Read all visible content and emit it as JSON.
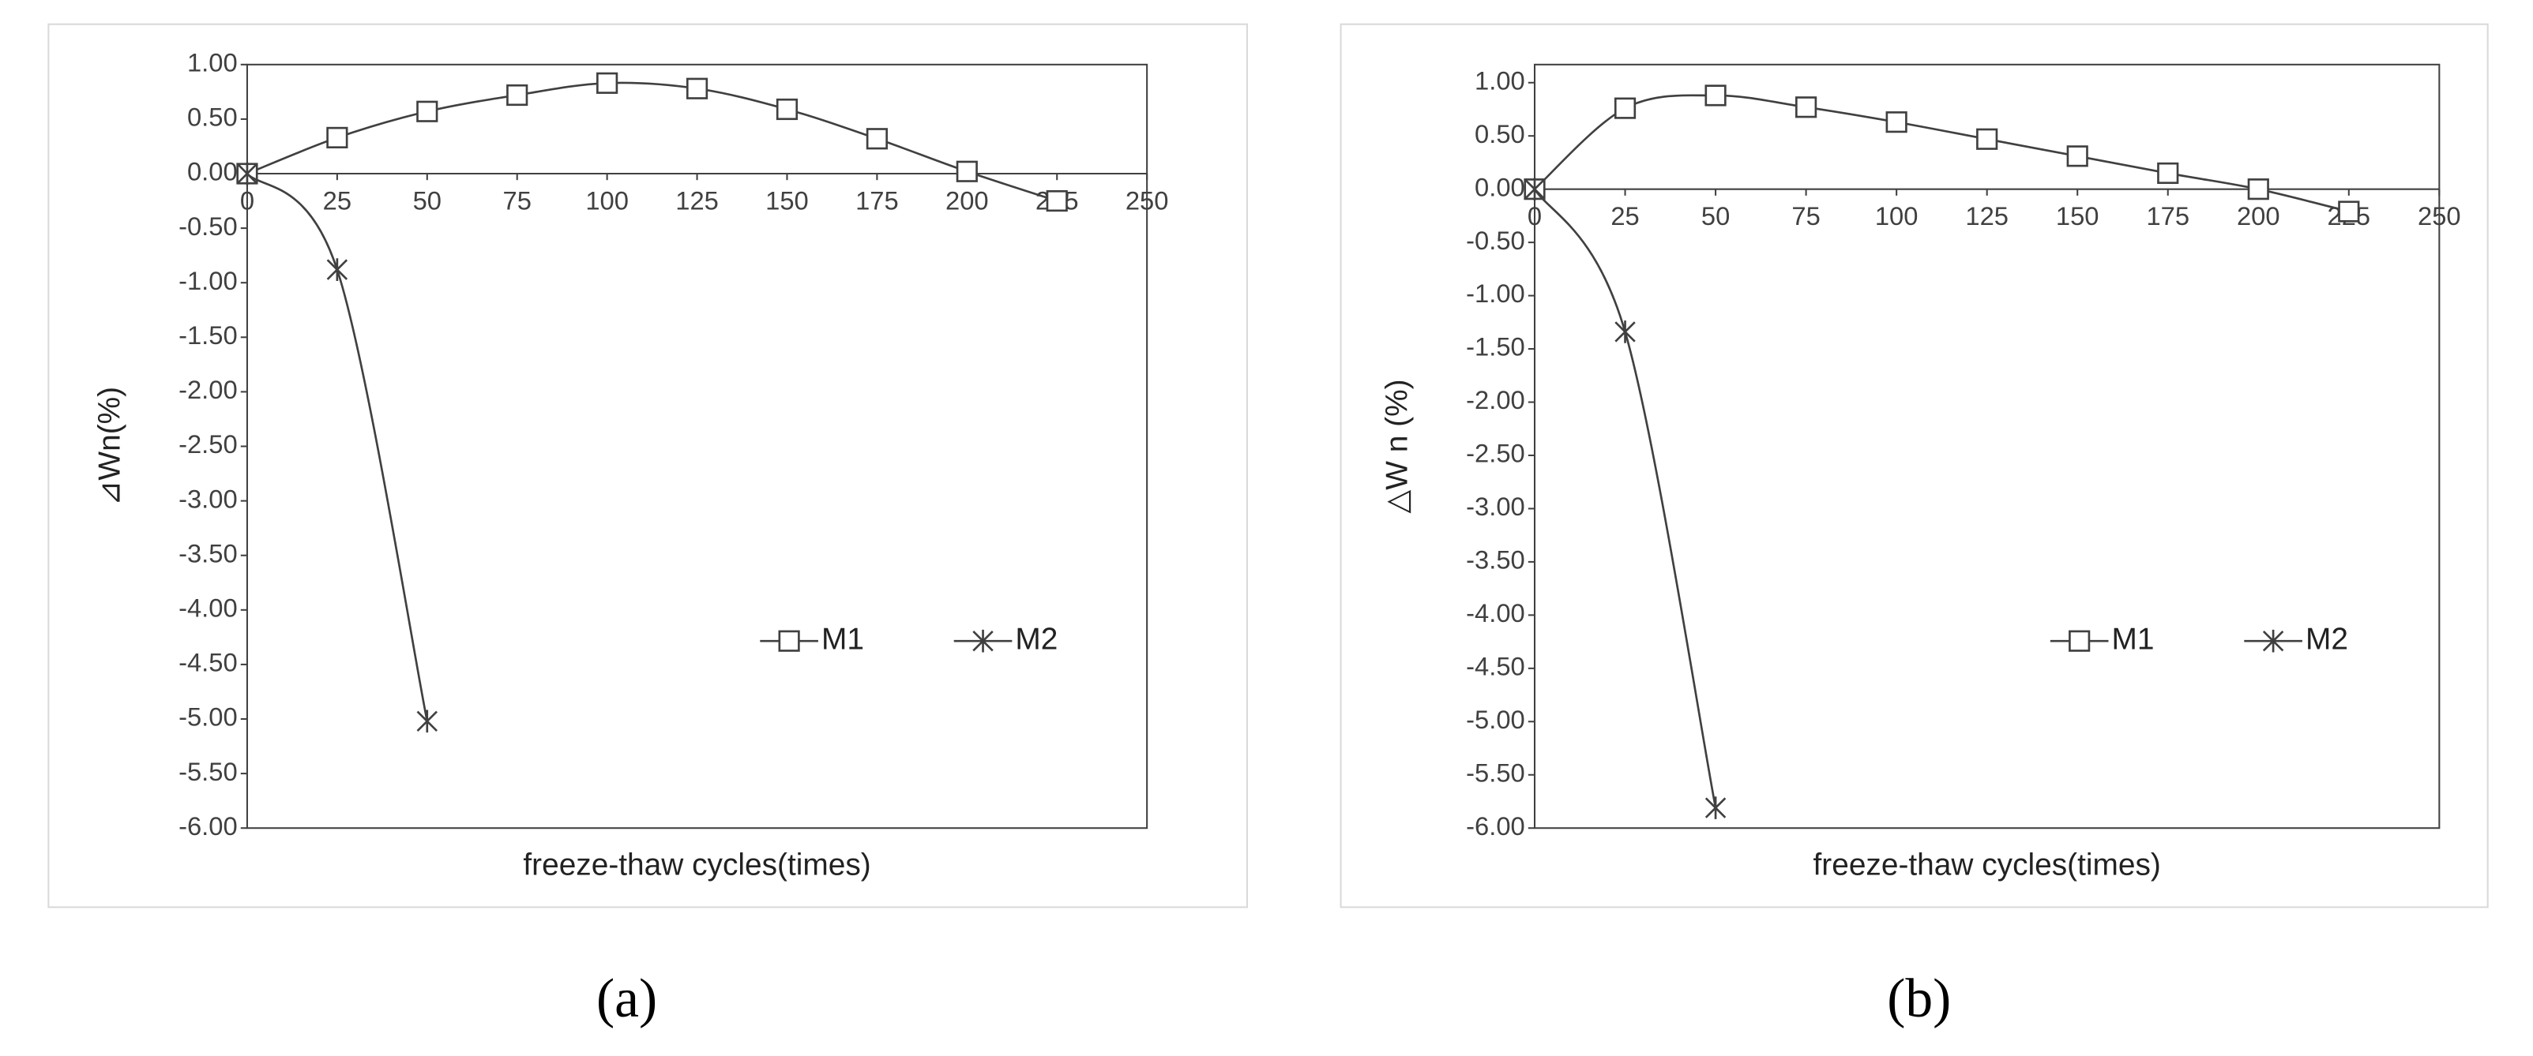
{
  "chart_data": [
    {
      "type": "line",
      "caption": "(a)",
      "xlabel": "freeze-thaw cycles(times)",
      "ylabel": "⊿Wn(%)",
      "xlim": [
        0,
        250
      ],
      "xticks": [
        0,
        25,
        50,
        75,
        100,
        125,
        150,
        175,
        200,
        225,
        250
      ],
      "ylim": [
        -6,
        1
      ],
      "yticks": [
        {
          "value": -6,
          "label": "-6.00"
        },
        {
          "value": -5.5,
          "label": "-5.50"
        },
        {
          "value": -5,
          "label": "-5.00"
        },
        {
          "value": -4.5,
          "label": "-4.50"
        },
        {
          "value": -4,
          "label": "-4.00"
        },
        {
          "value": -3.5,
          "label": "-3.50"
        },
        {
          "value": -3,
          "label": "-3.00"
        },
        {
          "value": -2.5,
          "label": "-2.50"
        },
        {
          "value": -2,
          "label": "-2.00"
        },
        {
          "value": -1.5,
          "label": "-1.50"
        },
        {
          "value": -1,
          "label": "-1.00"
        },
        {
          "value": -0.5,
          "label": "-0.50"
        },
        {
          "value": 0,
          "label": "0.00"
        },
        {
          "value": 0.5,
          "label": "0.50"
        },
        {
          "value": 1,
          "label": "1.00"
        }
      ],
      "legend": "lower right",
      "series": [
        {
          "name": "M1",
          "color": "#404040",
          "marker": "square",
          "x": [
            0,
            25,
            50,
            75,
            100,
            125,
            150,
            175,
            200,
            225
          ],
          "values": [
            0,
            0.33,
            0.57,
            0.72,
            0.83,
            0.78,
            0.59,
            0.32,
            0.02,
            -0.25
          ]
        },
        {
          "name": "M2",
          "color": "#404040",
          "marker": "asterisk",
          "x": [
            0,
            25,
            50
          ],
          "values": [
            0,
            -0.88,
            -5.02
          ]
        }
      ]
    },
    {
      "type": "line",
      "caption": "(b)",
      "xlabel": "freeze-thaw cycles(times)",
      "ylabel": "△W n (%)",
      "xlim": [
        0,
        250
      ],
      "xticks": [
        0,
        25,
        50,
        75,
        100,
        125,
        150,
        175,
        200,
        225,
        250
      ],
      "ylim": [
        -6,
        1.17
      ],
      "yticks": [
        {
          "value": -6,
          "label": "-6.00"
        },
        {
          "value": -5.5,
          "label": "-5.50"
        },
        {
          "value": -5,
          "label": "-5.00"
        },
        {
          "value": -4.5,
          "label": "-4.50"
        },
        {
          "value": -4,
          "label": "-4.00"
        },
        {
          "value": -3.5,
          "label": "-3.50"
        },
        {
          "value": -3,
          "label": "-3.00"
        },
        {
          "value": -2.5,
          "label": "-2.50"
        },
        {
          "value": -2,
          "label": "-2.00"
        },
        {
          "value": -1.5,
          "label": "-1.50"
        },
        {
          "value": -1,
          "label": "-1.00"
        },
        {
          "value": -0.5,
          "label": "-0.50"
        },
        {
          "value": 0,
          "label": "0.00"
        },
        {
          "value": 0.5,
          "label": "0.50"
        },
        {
          "value": 1,
          "label": "1.00"
        }
      ],
      "legend": "lower right",
      "series": [
        {
          "name": "M1",
          "color": "#404040",
          "marker": "square",
          "x": [
            0,
            25,
            50,
            75,
            100,
            125,
            150,
            175,
            200,
            225
          ],
          "values": [
            0,
            0.76,
            0.88,
            0.77,
            0.63,
            0.47,
            0.31,
            0.15,
            0.0,
            -0.21
          ]
        },
        {
          "name": "M2",
          "color": "#404040",
          "marker": "asterisk",
          "x": [
            0,
            25,
            50
          ],
          "values": [
            0,
            -1.34,
            -5.81
          ]
        }
      ]
    }
  ]
}
